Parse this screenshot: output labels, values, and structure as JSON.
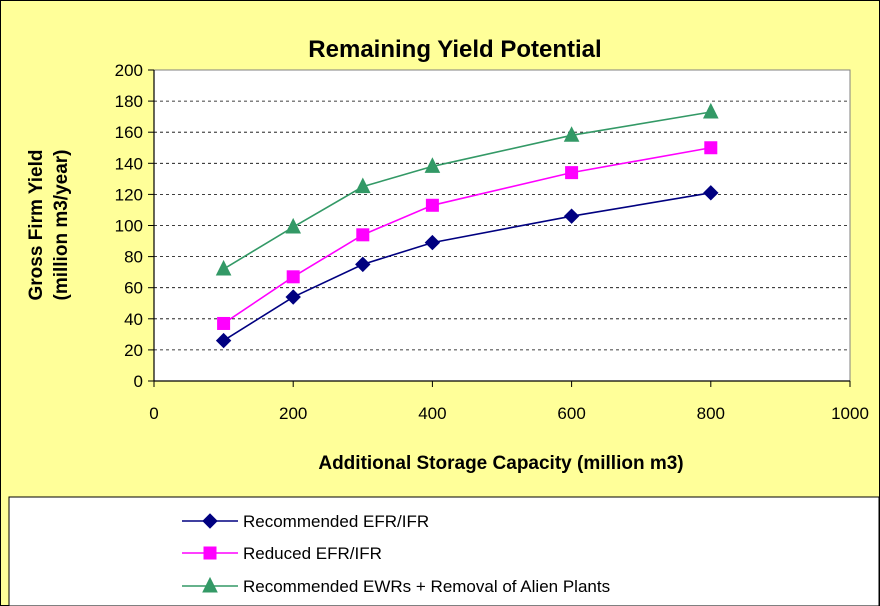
{
  "chart_data": {
    "type": "line",
    "title": "Remaining Yield Potential",
    "xlabel": "Additional Storage Capacity (million m3)",
    "ylabel_lines": [
      "Gross Firm Yield",
      "(million m3/year)"
    ],
    "xlim": [
      0,
      1000
    ],
    "ylim": [
      0,
      200
    ],
    "x_ticks": [
      0,
      200,
      400,
      600,
      800,
      1000
    ],
    "y_ticks": [
      0,
      20,
      40,
      60,
      80,
      100,
      120,
      140,
      160,
      180,
      200
    ],
    "grid": "horizontal dashed",
    "legend_position": "bottom",
    "x": [
      100,
      200,
      300,
      400,
      600,
      800
    ],
    "series": [
      {
        "name": "Recommended EFR/IFR",
        "color": "#000080",
        "marker": "diamond",
        "values": [
          26,
          54,
          75,
          89,
          106,
          121
        ]
      },
      {
        "name": "Reduced EFR/IFR",
        "color": "#ff00ff",
        "marker": "square",
        "values": [
          37,
          67,
          94,
          113,
          134,
          150
        ]
      },
      {
        "name": "Recommended EWRs + Removal of Alien Plants",
        "color": "#339966",
        "marker": "triangle",
        "values": [
          72,
          99,
          125,
          138,
          158,
          173
        ]
      }
    ],
    "colors": {
      "background": "#ffff99",
      "plot_area": "#ffffff",
      "gridline": "#000000"
    }
  }
}
